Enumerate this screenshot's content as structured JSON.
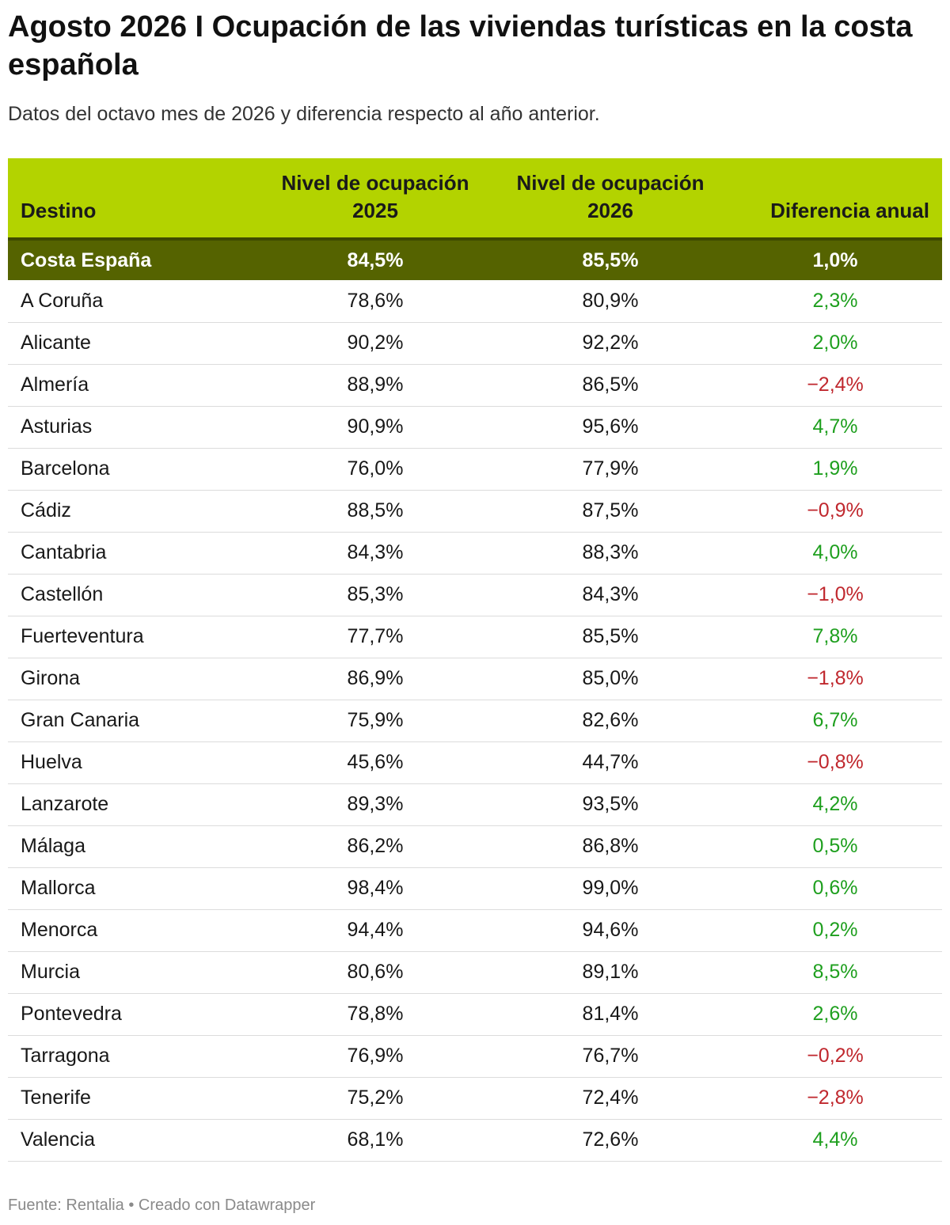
{
  "title": "Agosto 2026 I Ocupación de las viviendas turísticas en la costa española",
  "subtitle": "Datos del octavo mes de 2026 y diferencia respecto al año anterior.",
  "footer": "Fuente: Rentalia • Creado con Datawrapper",
  "colors": {
    "header_bg": "#b3d300",
    "total_row_bg": "#556300",
    "positive": "#1e9f1e",
    "negative": "#c0282e"
  },
  "chart_data": {
    "type": "table",
    "columns": [
      "Destino",
      "Nivel de ocupación 2025",
      "Nivel de ocupación 2026",
      "Diferencia anual"
    ],
    "total": {
      "destino": "Costa España",
      "y2025": "84,5%",
      "y2026": "85,5%",
      "diff": "1,0%"
    },
    "rows": [
      {
        "destino": "A Coruña",
        "y2025": "78,6%",
        "y2026": "80,9%",
        "diff": "2,3%"
      },
      {
        "destino": "Alicante",
        "y2025": "90,2%",
        "y2026": "92,2%",
        "diff": "2,0%"
      },
      {
        "destino": "Almería",
        "y2025": "88,9%",
        "y2026": "86,5%",
        "diff": "−2,4%"
      },
      {
        "destino": "Asturias",
        "y2025": "90,9%",
        "y2026": "95,6%",
        "diff": "4,7%"
      },
      {
        "destino": "Barcelona",
        "y2025": "76,0%",
        "y2026": "77,9%",
        "diff": "1,9%"
      },
      {
        "destino": "Cádiz",
        "y2025": "88,5%",
        "y2026": "87,5%",
        "diff": "−0,9%"
      },
      {
        "destino": "Cantabria",
        "y2025": "84,3%",
        "y2026": "88,3%",
        "diff": "4,0%"
      },
      {
        "destino": "Castellón",
        "y2025": "85,3%",
        "y2026": "84,3%",
        "diff": "−1,0%"
      },
      {
        "destino": "Fuerteventura",
        "y2025": "77,7%",
        "y2026": "85,5%",
        "diff": "7,8%"
      },
      {
        "destino": "Girona",
        "y2025": "86,9%",
        "y2026": "85,0%",
        "diff": "−1,8%"
      },
      {
        "destino": "Gran Canaria",
        "y2025": "75,9%",
        "y2026": "82,6%",
        "diff": "6,7%"
      },
      {
        "destino": "Huelva",
        "y2025": "45,6%",
        "y2026": "44,7%",
        "diff": "−0,8%"
      },
      {
        "destino": "Lanzarote",
        "y2025": "89,3%",
        "y2026": "93,5%",
        "diff": "4,2%"
      },
      {
        "destino": "Málaga",
        "y2025": "86,2%",
        "y2026": "86,8%",
        "diff": "0,5%"
      },
      {
        "destino": "Mallorca",
        "y2025": "98,4%",
        "y2026": "99,0%",
        "diff": "0,6%"
      },
      {
        "destino": "Menorca",
        "y2025": "94,4%",
        "y2026": "94,6%",
        "diff": "0,2%"
      },
      {
        "destino": "Murcia",
        "y2025": "80,6%",
        "y2026": "89,1%",
        "diff": "8,5%"
      },
      {
        "destino": "Pontevedra",
        "y2025": "78,8%",
        "y2026": "81,4%",
        "diff": "2,6%"
      },
      {
        "destino": "Tarragona",
        "y2025": "76,9%",
        "y2026": "76,7%",
        "diff": "−0,2%"
      },
      {
        "destino": "Tenerife",
        "y2025": "75,2%",
        "y2026": "72,4%",
        "diff": "−2,8%"
      },
      {
        "destino": "Valencia",
        "y2025": "68,1%",
        "y2026": "72,6%",
        "diff": "4,4%"
      }
    ]
  }
}
